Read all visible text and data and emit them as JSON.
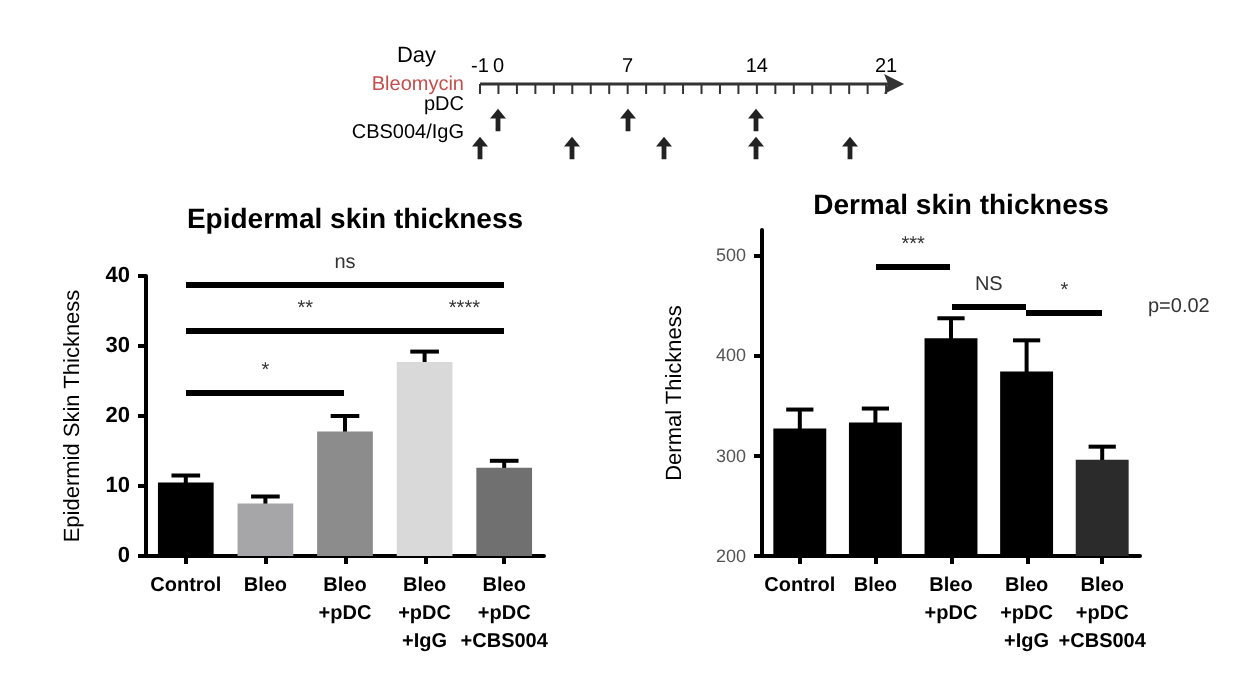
{
  "chart_data": [
    {
      "type": "other",
      "annotations": [
        "Day",
        "-1",
        "0",
        "7",
        "14",
        "21",
        "Bleomycin",
        "pDC",
        "CBS004/IgG"
      ]
    },
    {
      "type": "bar",
      "title": "Epidermal skin thickness",
      "ylabel": "Epidermid Skin Thickness",
      "categories": [
        "Control",
        "Bleo",
        "Bleo\n+pDC",
        "Bleo\n+pDC\n+IgG",
        "Bleo\n+pDC\n+CBS004"
      ],
      "values": [
        10.5,
        7.5,
        17.8,
        27.7,
        12.6
      ],
      "errors": [
        1,
        1,
        2.2,
        1.5,
        1
      ],
      "colors": [
        "#000000",
        "#a6a6a8",
        "#8c8c8c",
        "#d9d9d9",
        "#707070"
      ],
      "ylim": [
        0,
        40
      ],
      "yticks": [
        0,
        10,
        20,
        30,
        40
      ],
      "grid": false,
      "annotations": [
        "ns",
        "**",
        "****",
        "*"
      ]
    },
    {
      "type": "bar",
      "title": "Dermal skin thickness",
      "ylabel": "Dermal Thickness",
      "categories": [
        "Control",
        "Bleo",
        "Bleo\n+pDC",
        "Bleo\n+pDC\n+IgG",
        "Bleo\n+pDC\n+CBS004"
      ],
      "values": [
        327,
        333,
        417,
        384,
        296
      ],
      "errors": [
        19,
        14,
        20,
        31,
        13
      ],
      "colors": [
        "#000000",
        "#000000",
        "#000000",
        "#000000",
        "#2b2b2b"
      ],
      "ylim": [
        200,
        525
      ],
      "yticks": [
        200,
        300,
        400,
        500
      ],
      "grid": false,
      "annotations": [
        "***",
        "NS",
        "*",
        "p=0.02"
      ]
    }
  ]
}
